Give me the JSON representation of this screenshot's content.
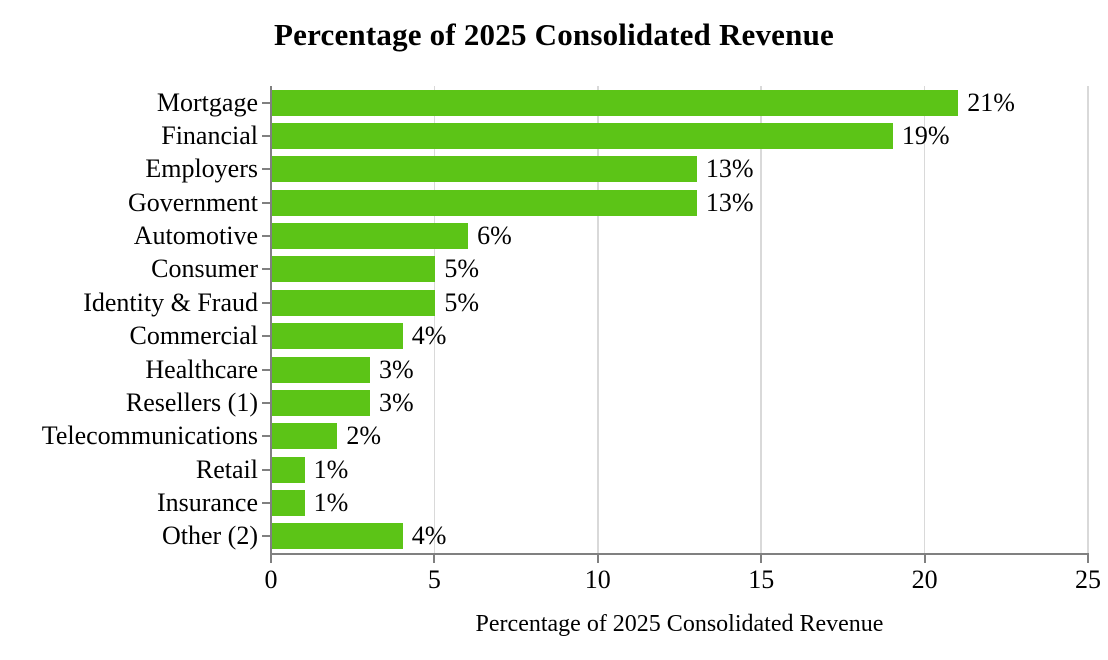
{
  "chart_data": {
    "type": "bar",
    "orientation": "horizontal",
    "title": "Percentage of 2025 Consolidated Revenue",
    "xlabel": "Percentage of 2025 Consolidated Revenue",
    "categories": [
      "Mortgage",
      "Financial",
      "Employers",
      "Government",
      "Automotive",
      "Consumer",
      "Identity & Fraud",
      "Commercial",
      "Healthcare",
      "Resellers (1)",
      "Telecommunications",
      "Retail",
      "Insurance",
      "Other (2)"
    ],
    "values": [
      21,
      19,
      13,
      13,
      6,
      5,
      5,
      4,
      3,
      3,
      2,
      1,
      1,
      4
    ],
    "value_labels": [
      "21%",
      "19%",
      "13%",
      "13%",
      "6%",
      "5%",
      "5%",
      "4%",
      "3%",
      "3%",
      "2%",
      "1%",
      "1%",
      "4%"
    ],
    "xlim": [
      0,
      25
    ],
    "xticks": [
      0,
      5,
      10,
      15,
      20,
      25
    ],
    "grid": "vertical",
    "legend": "none",
    "colors": {
      "bar": "#5CC417",
      "gridline": "#D9D9D9",
      "axis": "#808080",
      "text": "#000000",
      "background": "#FFFFFF"
    }
  }
}
